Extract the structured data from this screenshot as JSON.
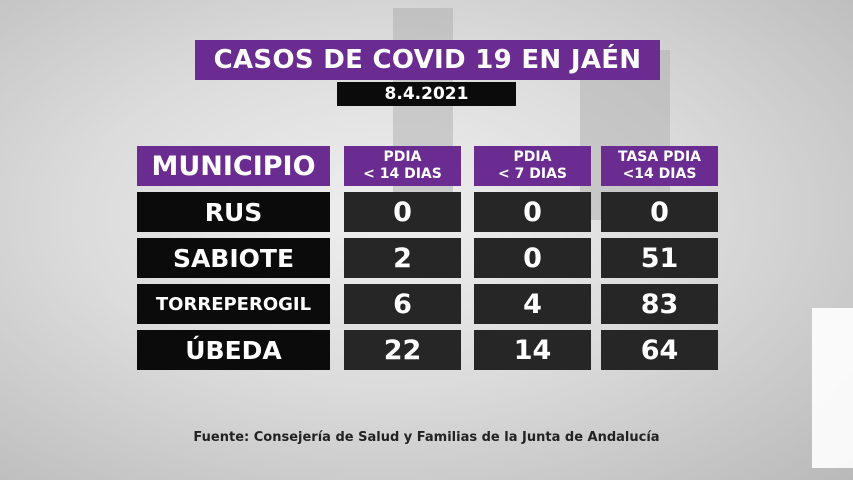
{
  "title": "CASOS DE COVID 19 EN JAÉN",
  "date": "8.4.2021",
  "columns": [
    "MUNICIPIO",
    "PDIA\n< 14 DIAS",
    "PDIA\n< 7 DIAS",
    "TASA PDIA\n<14 DIAS"
  ],
  "rows": [
    {
      "municipio": "RUS",
      "pdia14": "0",
      "pdia7": "0",
      "tasa": "0"
    },
    {
      "municipio": "SABIOTE",
      "pdia14": "2",
      "pdia7": "0",
      "tasa": "51"
    },
    {
      "municipio": "TORREPEROGIL",
      "pdia14": "6",
      "pdia7": "4",
      "tasa": "83"
    },
    {
      "municipio": "ÚBEDA",
      "pdia14": "22",
      "pdia7": "14",
      "tasa": "64"
    }
  ],
  "source": "Fuente: Consejería de Salud y Familias de la Junta de Andalucía",
  "colors": {
    "header": "#6a2c91",
    "name_cell": "#0b0b0b",
    "value_cell": "#262626"
  }
}
